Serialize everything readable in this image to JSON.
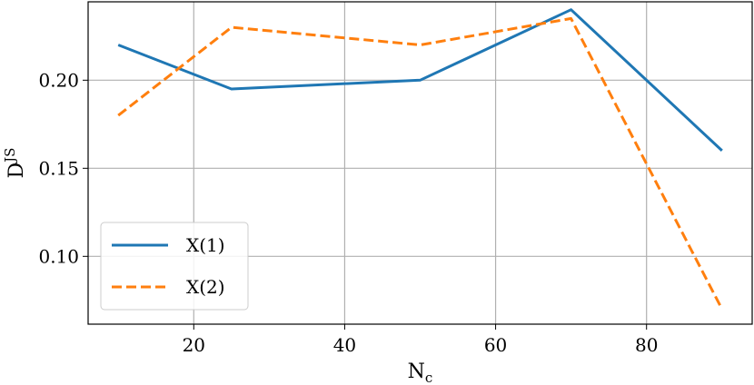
{
  "chart_data": {
    "type": "line",
    "x": [
      10,
      25,
      50,
      70,
      90
    ],
    "series": [
      {
        "name": "X(1)",
        "values": [
          0.22,
          0.195,
          0.2,
          0.24,
          0.16
        ],
        "color": "#1f77b4",
        "style": "solid"
      },
      {
        "name": "X(2)",
        "values": [
          0.18,
          0.23,
          0.22,
          0.235,
          0.07
        ],
        "color": "#ff7f0e",
        "style": "dashed"
      }
    ],
    "xlabel": "N",
    "xlabel_sub": "c",
    "ylabel": "D",
    "ylabel_sup": "JS",
    "xlim": [
      6,
      94
    ],
    "ylim": [
      0.0615,
      0.2445
    ],
    "xticks": [
      20,
      40,
      60,
      80
    ],
    "xtick_labels": [
      "20",
      "40",
      "60",
      "80"
    ],
    "yticks": [
      0.1,
      0.15,
      0.2
    ],
    "ytick_labels": [
      "0.10",
      "0.15",
      "0.20"
    ],
    "grid": true,
    "legend_position": "lower-left"
  }
}
